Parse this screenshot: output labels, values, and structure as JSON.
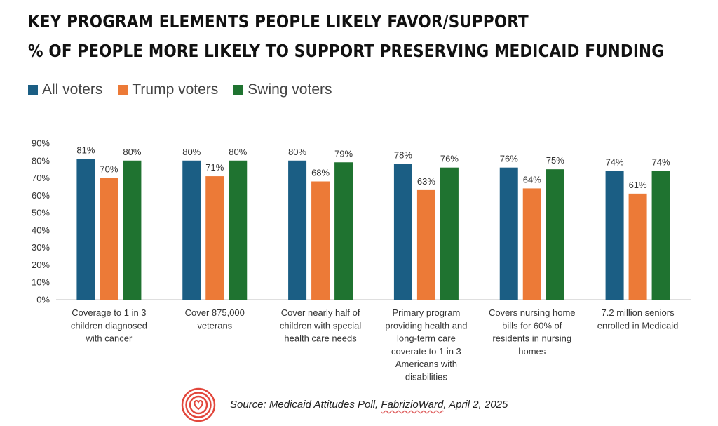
{
  "title": {
    "line1": "KEY PROGRAM ELEMENTS PEOPLE LIKELY FAVOR/SUPPORT",
    "line2": "% OF PEOPLE MORE LIKELY TO SUPPORT PRESERVING MEDICAID FUNDING"
  },
  "colors": {
    "all": "#1b5e84",
    "trump": "#ec7a37",
    "swing": "#1f7330"
  },
  "chart_data": {
    "type": "bar",
    "categories": [
      [
        "Coverage to 1 in 3",
        "children diagnosed",
        "with cancer"
      ],
      [
        "Cover 875,000",
        "veterans"
      ],
      [
        "Cover nearly half of",
        "children with special",
        "health care needs"
      ],
      [
        "Primary program",
        "providing health and",
        "long-term care",
        "coverate to 1 in 3",
        "Americans with",
        "disabilities"
      ],
      [
        "Covers nursing home",
        "bills for 60% of",
        "residents in nursing",
        "homes"
      ],
      [
        "7.2 million seniors",
        "enrolled in Medicaid"
      ]
    ],
    "series": [
      {
        "name": "All voters",
        "values": [
          81,
          80,
          80,
          78,
          76,
          74
        ]
      },
      {
        "name": "Trump voters",
        "values": [
          70,
          71,
          68,
          63,
          64,
          61
        ]
      },
      {
        "name": "Swing voters",
        "values": [
          80,
          80,
          79,
          76,
          75,
          74
        ]
      }
    ],
    "ylim": [
      0,
      90
    ],
    "yticks": [
      "0%",
      "10%",
      "20%",
      "30%",
      "40%",
      "50%",
      "60%",
      "70%",
      "80%",
      "90%"
    ],
    "value_suffix": "%",
    "grid": false,
    "legend_position": "top-left"
  },
  "source": {
    "prefix": "Source: Medicaid Attitudes Poll, ",
    "brand": "FabrizioWard",
    "suffix": ", April 2, 2025"
  }
}
